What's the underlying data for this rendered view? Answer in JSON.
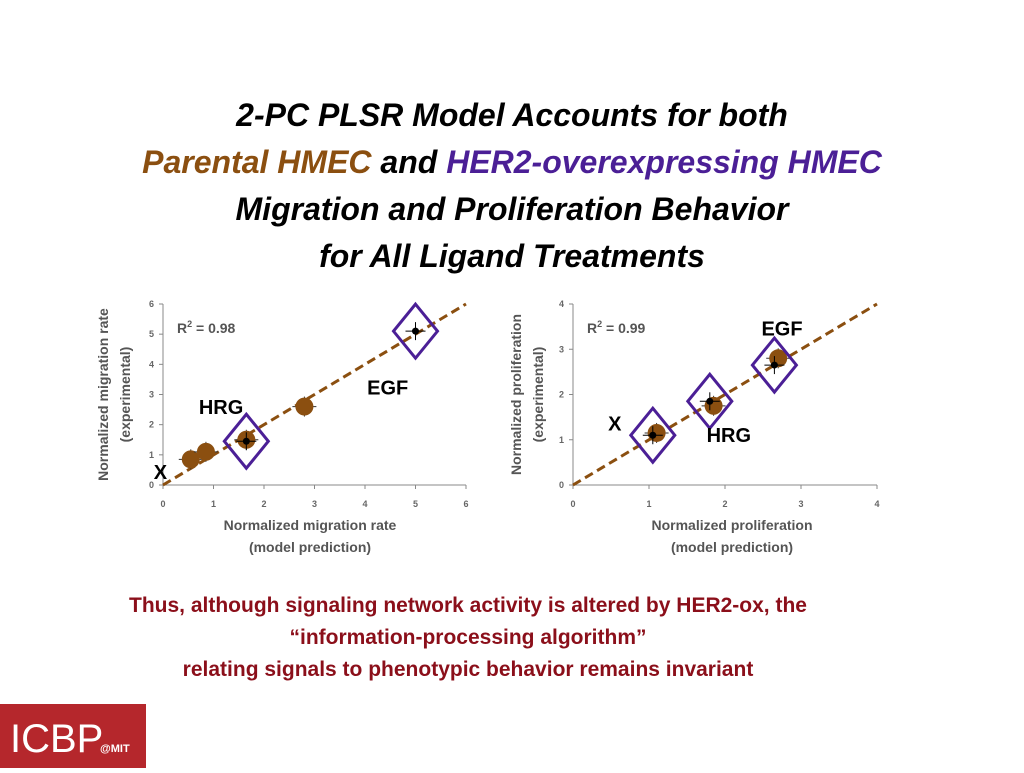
{
  "title": {
    "line1": "2-PC PLSR Model Accounts for both",
    "line2_parental": "Parental HMEC",
    "line2_and": " and ",
    "line2_her2": "HER2-overexpressing HMEC",
    "line3": "Migration and Proliferation Behavior",
    "line4": "for All Ligand Treatments"
  },
  "colors": {
    "parental": "#8b4f10",
    "her2": "#4b1f96",
    "conclusion": "#8b0f1a",
    "logo_bg": "#b5272c",
    "fit_line": "#8b4f10"
  },
  "conclusion": {
    "line1": "Thus, although signaling network activity is altered by HER2-ox, the",
    "line2": "“information-processing algorithm”",
    "line3": "relating signals to phenotypic behavior remains invariant"
  },
  "logo": {
    "main": "ICBP",
    "suffix": "@MIT"
  },
  "chart_data": [
    {
      "type": "scatter",
      "xlabel": "Normalized migration rate",
      "xlabel2": "(model prediction)",
      "ylabel": "Normalized migration rate",
      "ylabel2": "(experimental)",
      "xlim": [
        0,
        6
      ],
      "ylim": [
        0,
        6
      ],
      "xticks": [
        "0",
        "1",
        "2",
        "3",
        "4",
        "5",
        "6"
      ],
      "yticks": [
        "0",
        "1",
        "2",
        "3",
        "4",
        "5",
        "6"
      ],
      "annotation": "R",
      "annotation_sup": "2",
      "annotation_value": " = 0.98",
      "fit_line": [
        [
          0,
          0
        ],
        [
          6,
          6
        ]
      ],
      "grid": false,
      "series": [
        {
          "marker": "circle",
          "points": [
            [
              0.55,
              0.85
            ],
            [
              0.85,
              1.1
            ],
            [
              1.65,
              1.5
            ],
            [
              2.8,
              2.6
            ]
          ]
        },
        {
          "marker": "diamond",
          "points": [
            [
              1.65,
              1.45
            ],
            [
              5.0,
              5.1
            ]
          ]
        }
      ],
      "labels": [
        {
          "text": "HRG",
          "x": 1.15,
          "y": 2.35
        },
        {
          "text": "EGF",
          "x": 4.45,
          "y": 3.0
        },
        {
          "text": "X",
          "x": -0.05,
          "y": 0.2
        }
      ]
    },
    {
      "type": "scatter",
      "xlabel": "Normalized proliferation",
      "xlabel2": "(model prediction)",
      "ylabel": "Normalized proliferation",
      "ylabel2": "(experimental)",
      "xlim": [
        0,
        4
      ],
      "ylim": [
        0,
        4
      ],
      "xticks": [
        "0",
        "1",
        "2",
        "3",
        "4"
      ],
      "yticks": [
        "0",
        "1",
        "2",
        "3",
        "4"
      ],
      "annotation": "R",
      "annotation_sup": "2",
      "annotation_value": " = 0.99",
      "fit_line": [
        [
          0,
          0
        ],
        [
          4,
          4
        ]
      ],
      "grid": false,
      "series": [
        {
          "marker": "circle",
          "points": [
            [
              1.1,
              1.15
            ],
            [
              1.85,
              1.75
            ],
            [
              2.7,
              2.8
            ]
          ]
        },
        {
          "marker": "diamond",
          "points": [
            [
              1.05,
              1.1
            ],
            [
              1.8,
              1.85
            ],
            [
              2.65,
              2.65
            ]
          ]
        }
      ],
      "labels": [
        {
          "text": "EGF",
          "x": 2.75,
          "y": 3.3
        },
        {
          "text": "X",
          "x": 0.55,
          "y": 1.2
        },
        {
          "text": "HRG",
          "x": 2.05,
          "y": 0.95
        }
      ]
    }
  ]
}
